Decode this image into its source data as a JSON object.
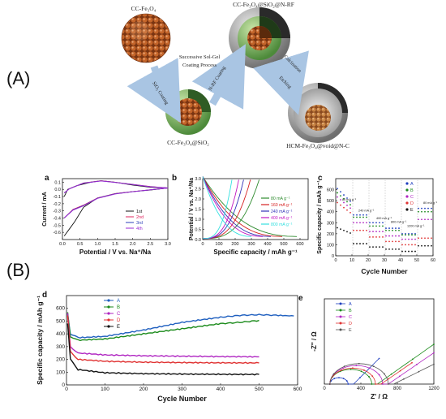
{
  "section_a": "(A)",
  "section_b": "(B)",
  "schematic": {
    "s1": "CC-Fe₃O₄",
    "s2": "CC-Fe₃O₄@SiO₂@N-RF",
    "s3": "CC-Fe₃O₄@SiO₂",
    "s4": "HCM-Fe₃O₄@void@N-C",
    "step1": "SiO₂ Coating",
    "step_center": [
      "Successive Sol-Gel",
      "Coating Process"
    ],
    "step2": "N-RF Coating",
    "step3": "Calcination",
    "step4": "Etching",
    "colors": {
      "core": "#b5581f",
      "core_dark": "#7a3512",
      "green": "#6aa457",
      "gray": "#8f8f8f",
      "arrow": "#a9c5e3"
    }
  },
  "chart_data": [
    {
      "id": "a",
      "type": "line",
      "letter": "a",
      "xlabel": "Potential / V vs. Na⁺/Na",
      "ylabel": "Current / mA",
      "xlim": [
        0,
        3.0
      ],
      "ylim": [
        -0.7,
        0.15
      ],
      "xticks": [
        "0.0",
        "0.5",
        "1.0",
        "1.5",
        "2.0",
        "2.5",
        "3.0"
      ],
      "yticks": [
        "0.1",
        "0.0",
        "-0.1",
        "-0.2",
        "-0.3",
        "-0.4",
        "-0.5",
        "-0.6"
      ],
      "series": [
        {
          "name": "1st",
          "color": "#111111",
          "values": [
            [
              0.05,
              -0.65
            ],
            [
              0.2,
              -0.55
            ],
            [
              0.35,
              -0.45
            ],
            [
              0.6,
              -0.25
            ],
            [
              1.0,
              -0.12
            ],
            [
              1.5,
              -0.06
            ],
            [
              2.0,
              -0.03
            ],
            [
              2.5,
              -0.01
            ],
            [
              3.0,
              0.02
            ],
            [
              2.5,
              0.03
            ],
            [
              2.0,
              0.06
            ],
            [
              1.5,
              0.1
            ],
            [
              1.1,
              0.12
            ],
            [
              0.8,
              0.1
            ],
            [
              0.4,
              0.05
            ],
            [
              0.15,
              0.0
            ],
            [
              0.05,
              -0.1
            ]
          ]
        },
        {
          "name": "2nd",
          "color": "#e0245e",
          "values": [
            [
              0.05,
              -0.4
            ],
            [
              0.3,
              -0.28
            ],
            [
              0.6,
              -0.22
            ],
            [
              1.0,
              -0.12
            ],
            [
              1.5,
              -0.06
            ],
            [
              2.0,
              -0.03
            ],
            [
              3.0,
              0.02
            ],
            [
              2.5,
              0.04
            ],
            [
              2.0,
              0.07
            ],
            [
              1.5,
              0.1
            ],
            [
              1.1,
              0.12
            ],
            [
              0.6,
              0.09
            ],
            [
              0.2,
              0.01
            ],
            [
              0.05,
              -0.05
            ]
          ]
        },
        {
          "name": "3rd",
          "color": "#2b3fb8",
          "values": [
            [
              0.05,
              -0.4
            ],
            [
              0.3,
              -0.285
            ],
            [
              0.6,
              -0.225
            ],
            [
              1.0,
              -0.122
            ],
            [
              1.5,
              -0.062
            ],
            [
              2.0,
              -0.032
            ],
            [
              3.0,
              0.02
            ],
            [
              2.5,
              0.038
            ],
            [
              2.0,
              0.068
            ],
            [
              1.5,
              0.098
            ],
            [
              1.1,
              0.118
            ],
            [
              0.6,
              0.088
            ],
            [
              0.2,
              0.01
            ],
            [
              0.05,
              -0.05
            ]
          ]
        },
        {
          "name": "4th",
          "color": "#9a2bd3",
          "values": [
            [
              0.05,
              -0.4
            ],
            [
              0.3,
              -0.29
            ],
            [
              0.6,
              -0.23
            ],
            [
              1.0,
              -0.125
            ],
            [
              1.5,
              -0.064
            ],
            [
              2.0,
              -0.033
            ],
            [
              3.0,
              0.02
            ],
            [
              2.5,
              0.037
            ],
            [
              2.0,
              0.067
            ],
            [
              1.5,
              0.097
            ],
            [
              1.1,
              0.117
            ],
            [
              0.6,
              0.087
            ],
            [
              0.2,
              0.01
            ],
            [
              0.05,
              -0.05
            ]
          ]
        }
      ]
    },
    {
      "id": "b",
      "type": "line",
      "letter": "b",
      "xlabel": "Specific capacity / mAh g⁻¹",
      "ylabel": "Potential / V vs. Na⁺/Na",
      "xlim": [
        0,
        650
      ],
      "ylim": [
        0,
        3.0
      ],
      "xticks": [
        "0",
        "100",
        "200",
        "300",
        "400",
        "500",
        "600"
      ],
      "yticks": [
        "0.0",
        "0.5",
        "1.0",
        "1.5",
        "2.0",
        "2.5",
        "3.0"
      ],
      "series": [
        {
          "name": "80 mA g⁻¹",
          "color": "#2e8b2e",
          "cap": 580
        },
        {
          "name": "160 mA g⁻¹",
          "color": "#d62020",
          "cap": 490
        },
        {
          "name": "240 mA g⁻¹",
          "color": "#3232b8",
          "cap": 420
        },
        {
          "name": "400 mA g⁻¹",
          "color": "#c216c2",
          "cap": 370
        },
        {
          "name": "800 mA g⁻¹",
          "color": "#34e0e0",
          "cap": 300
        }
      ]
    },
    {
      "id": "c",
      "type": "scatter",
      "letter": "c",
      "xlabel": "Cycle Number",
      "ylabel": "Specific capacity / mAh g⁻¹",
      "xlim": [
        0,
        60
      ],
      "ylim": [
        0,
        700
      ],
      "xticks": [
        "0",
        "10",
        "20",
        "30",
        "40",
        "50",
        "60"
      ],
      "yticks": [
        "0",
        "100",
        "200",
        "300",
        "400",
        "500",
        "600"
      ],
      "rate_labels": [
        "80 mA g⁻¹",
        "240 mA g⁻¹",
        "400 mA g⁻¹",
        "800 mA g⁻¹",
        "1200 mA g⁻¹",
        "80 mA g⁻¹"
      ],
      "series": [
        {
          "name": "A",
          "color": "#1f3fbf",
          "levels": [
            480,
            370,
            300,
            250,
            200,
            430
          ]
        },
        {
          "name": "B",
          "color": "#1a8a1a",
          "levels": [
            450,
            350,
            270,
            230,
            190,
            400
          ]
        },
        {
          "name": "C",
          "color": "#b026c2",
          "levels": [
            420,
            300,
            220,
            180,
            150,
            330
          ]
        },
        {
          "name": "D",
          "color": "#e03232",
          "levels": [
            380,
            230,
            170,
            130,
            100,
            160
          ]
        },
        {
          "name": "E",
          "color": "#111111",
          "levels": [
            200,
            110,
            80,
            60,
            40,
            90
          ]
        }
      ]
    },
    {
      "id": "d",
      "type": "scatter",
      "letter": "d",
      "xlabel": "Cycle Number",
      "ylabel": "Specific capacity / mAh g⁻¹",
      "xlim": [
        0,
        600
      ],
      "ylim": [
        0,
        700
      ],
      "xticks": [
        "0",
        "100",
        "200",
        "300",
        "400",
        "500",
        "600"
      ],
      "yticks": [
        "0",
        "100",
        "200",
        "300",
        "400",
        "500",
        "600"
      ],
      "series": [
        {
          "name": "A",
          "color": "#1f5fbf",
          "values": [
            [
              3,
              560
            ],
            [
              10,
              400
            ],
            [
              30,
              370
            ],
            [
              100,
              380
            ],
            [
              200,
              430
            ],
            [
              300,
              490
            ],
            [
              400,
              530
            ],
            [
              450,
              545
            ],
            [
              500,
              550
            ],
            [
              550,
              545
            ],
            [
              590,
              540
            ]
          ]
        },
        {
          "name": "B",
          "color": "#1a8a1a",
          "values": [
            [
              3,
              570
            ],
            [
              10,
              380
            ],
            [
              30,
              350
            ],
            [
              100,
              360
            ],
            [
              200,
              400
            ],
            [
              300,
              440
            ],
            [
              400,
              480
            ],
            [
              450,
              490
            ],
            [
              500,
              505
            ]
          ]
        },
        {
          "name": "C",
          "color": "#b026c2",
          "values": [
            [
              3,
              560
            ],
            [
              10,
              300
            ],
            [
              30,
              250
            ],
            [
              100,
              235
            ],
            [
              200,
              228
            ],
            [
              300,
              225
            ],
            [
              400,
              222
            ],
            [
              500,
              220
            ]
          ]
        },
        {
          "name": "D",
          "color": "#e03232",
          "values": [
            [
              3,
              540
            ],
            [
              10,
              260
            ],
            [
              30,
              200
            ],
            [
              100,
              185
            ],
            [
              200,
              178
            ],
            [
              300,
              175
            ],
            [
              400,
              173
            ],
            [
              500,
              172
            ]
          ]
        },
        {
          "name": "E",
          "color": "#111111",
          "values": [
            [
              3,
              480
            ],
            [
              10,
              200
            ],
            [
              30,
              120
            ],
            [
              100,
              95
            ],
            [
              200,
              88
            ],
            [
              300,
              85
            ],
            [
              400,
              83
            ],
            [
              500,
              82
            ]
          ]
        }
      ]
    },
    {
      "id": "e",
      "type": "scatter",
      "letter": "e",
      "xlabel": "Z' / Ω",
      "ylabel": "-Z'' / Ω",
      "xlim": [
        0,
        1200
      ],
      "ylim": [
        0,
        1200
      ],
      "xticks": [
        "0",
        "400",
        "800",
        "1200"
      ],
      "yticks": [],
      "series": [
        {
          "name": "A",
          "color": "#1f3fbf",
          "semi": [
            60,
            260
          ],
          "tail": [
            [
              320,
              0
            ],
            [
              600,
              360
            ]
          ]
        },
        {
          "name": "B",
          "color": "#1a8a1a",
          "semi": [
            60,
            520
          ],
          "tail": [
            [
              580,
              0
            ],
            [
              1200,
              560
            ]
          ]
        },
        {
          "name": "C",
          "color": "#b026c2",
          "semi": [
            60,
            640
          ],
          "tail": [
            [
              700,
              0
            ],
            [
              1200,
              440
            ]
          ]
        },
        {
          "name": "D",
          "color": "#e03232",
          "semi": [
            60,
            560
          ],
          "tail": [
            [
              620,
              0
            ],
            [
              960,
              300
            ]
          ]
        },
        {
          "name": "E",
          "color": "#555555",
          "semi": [
            60,
            700
          ],
          "tail": [
            [
              760,
              0
            ],
            [
              1200,
              280
            ]
          ]
        }
      ]
    }
  ]
}
